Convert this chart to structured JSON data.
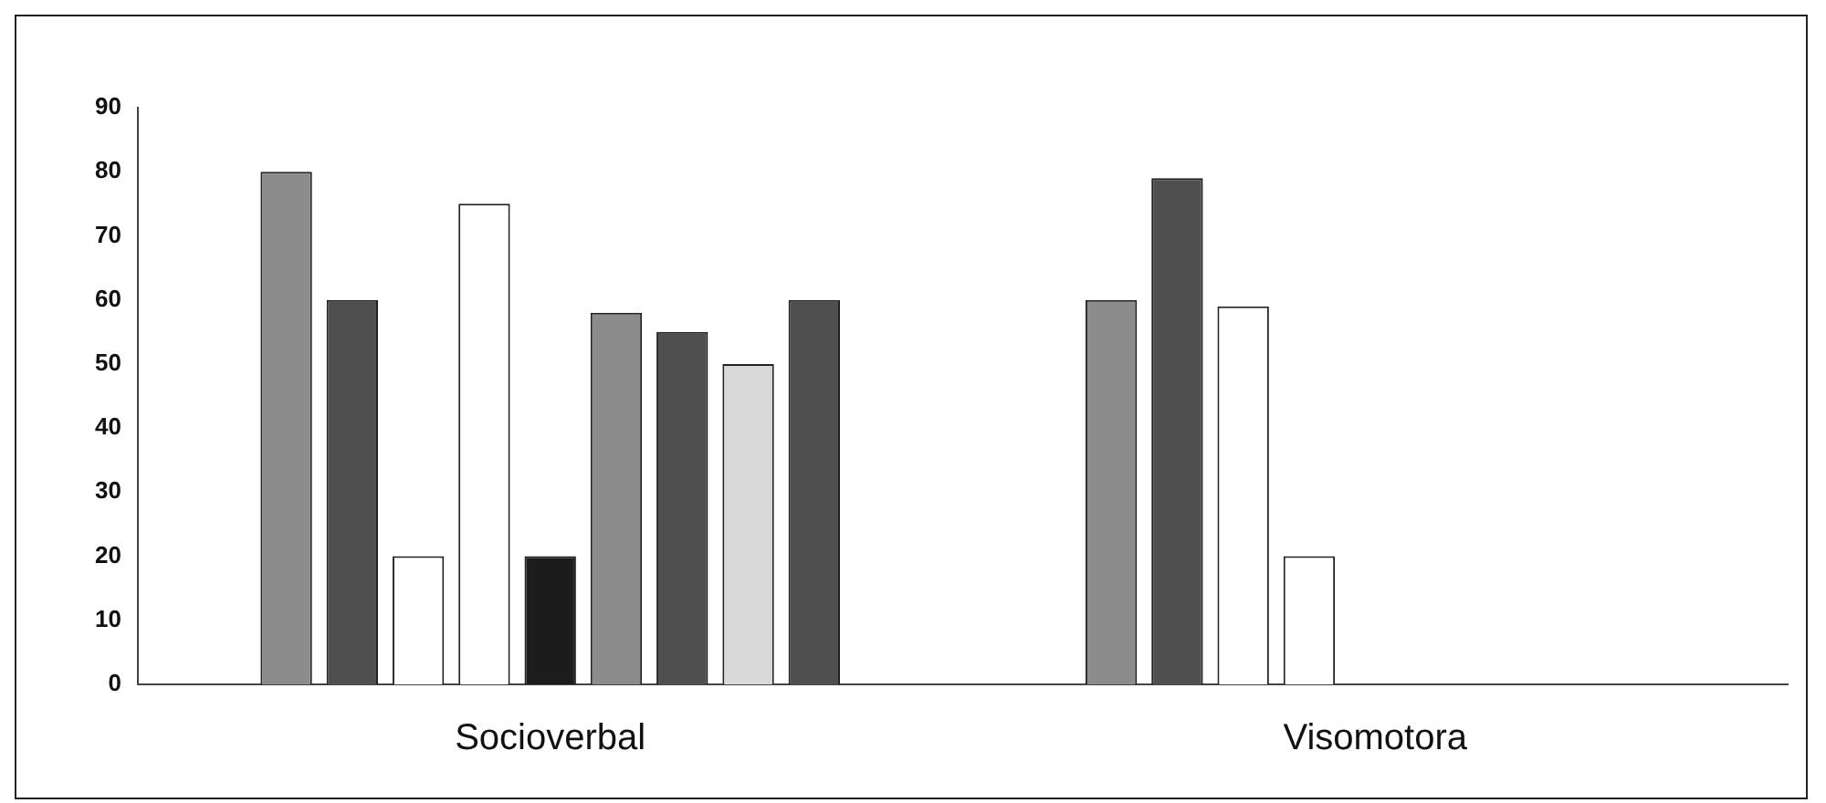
{
  "chart_data": {
    "type": "bar",
    "categories": [
      "Socioverbal",
      "Visomotora"
    ],
    "series": [
      {
        "color": "#8c8c8c",
        "values": [
          80,
          60
        ]
      },
      {
        "color": "#4f4f4f",
        "values": [
          60,
          79
        ]
      },
      {
        "color": "#ffffff",
        "values": [
          20,
          59
        ]
      },
      {
        "color": "#ffffff",
        "values": [
          75,
          20
        ]
      },
      {
        "color": "#1c1c1c",
        "values": [
          20,
          null
        ]
      },
      {
        "color": "#8c8c8c",
        "values": [
          58,
          null
        ]
      },
      {
        "color": "#4f4f4f",
        "values": [
          55,
          null
        ]
      },
      {
        "color": "#d9d9d9",
        "values": [
          50,
          null
        ]
      },
      {
        "color": "#4f4f4f",
        "values": [
          60,
          null
        ]
      }
    ],
    "ylim": [
      0,
      90
    ],
    "yticks": [
      0,
      10,
      20,
      30,
      40,
      50,
      60,
      70,
      80,
      90
    ],
    "grid": false,
    "legend": false
  }
}
